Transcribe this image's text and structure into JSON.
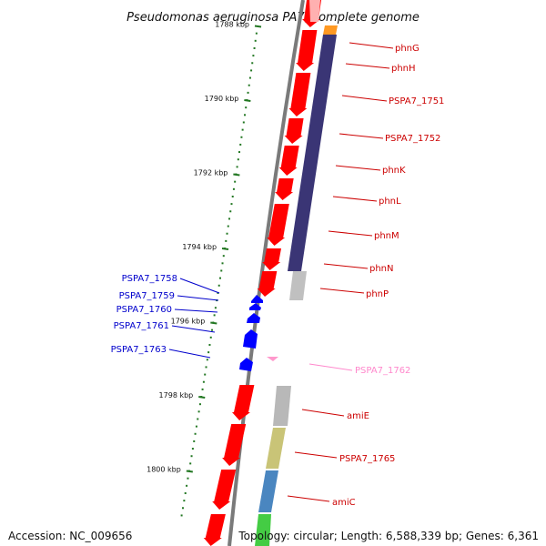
{
  "title": "Pseudomonas aeruginosa PA7, complete genome",
  "footer": {
    "accession": "Accession: NC_009656",
    "summary": "Topology: circular; Length: 6,588,339 bp; Genes: 6,361"
  },
  "colors": {
    "gene": "#ff0000",
    "blue_gene": "#0000ff",
    "pink_gene": "#ff99cc",
    "pink_label": "#ff88cc",
    "label_red": "#cc0000",
    "label_blue": "#0000cc",
    "tick": "#227722",
    "backbone": "#7a7a7a",
    "purple": "#3a3575",
    "gray": "#c0c0c0",
    "olive": "#c9c477",
    "steel_blue": "#4a86c0",
    "green": "#44cc44",
    "orange": "#ff9922"
  },
  "scale": {
    "unit": "kbp",
    "range_kbp": [
      1787.3,
      1801.3
    ],
    "major_ticks": [
      {
        "kbp": 1788,
        "label": "1788 kbp"
      },
      {
        "kbp": 1790,
        "label": "1790 kbp"
      },
      {
        "kbp": 1792,
        "label": "1792 kbp"
      },
      {
        "kbp": 1794,
        "label": "1794 kbp"
      },
      {
        "kbp": 1796,
        "label": "1796 kbp"
      },
      {
        "kbp": 1798,
        "label": "1798 kbp"
      },
      {
        "kbp": 1800,
        "label": "1800 kbp"
      }
    ]
  },
  "genes": [
    {
      "name": "phnG",
      "label_color": "red"
    },
    {
      "name": "phnH",
      "label_color": "red"
    },
    {
      "name": "PSPA7_1751",
      "label_color": "red"
    },
    {
      "name": "PSPA7_1752",
      "label_color": "red"
    },
    {
      "name": "phnK",
      "label_color": "red"
    },
    {
      "name": "phnL",
      "label_color": "red"
    },
    {
      "name": "phnM",
      "label_color": "red"
    },
    {
      "name": "phnN",
      "label_color": "red"
    },
    {
      "name": "phnP",
      "label_color": "red"
    },
    {
      "name": "PSPA7_1758",
      "label_color": "blue"
    },
    {
      "name": "PSPA7_1759",
      "label_color": "blue"
    },
    {
      "name": "PSPA7_1760",
      "label_color": "blue"
    },
    {
      "name": "PSPA7_1761",
      "label_color": "blue"
    },
    {
      "name": "PSPA7_1763",
      "label_color": "blue"
    },
    {
      "name": "PSPA7_1762",
      "label_color": "pink"
    },
    {
      "name": "amiE",
      "label_color": "red"
    },
    {
      "name": "PSPA7_1765",
      "label_color": "red"
    },
    {
      "name": "amiC",
      "label_color": "red"
    }
  ]
}
